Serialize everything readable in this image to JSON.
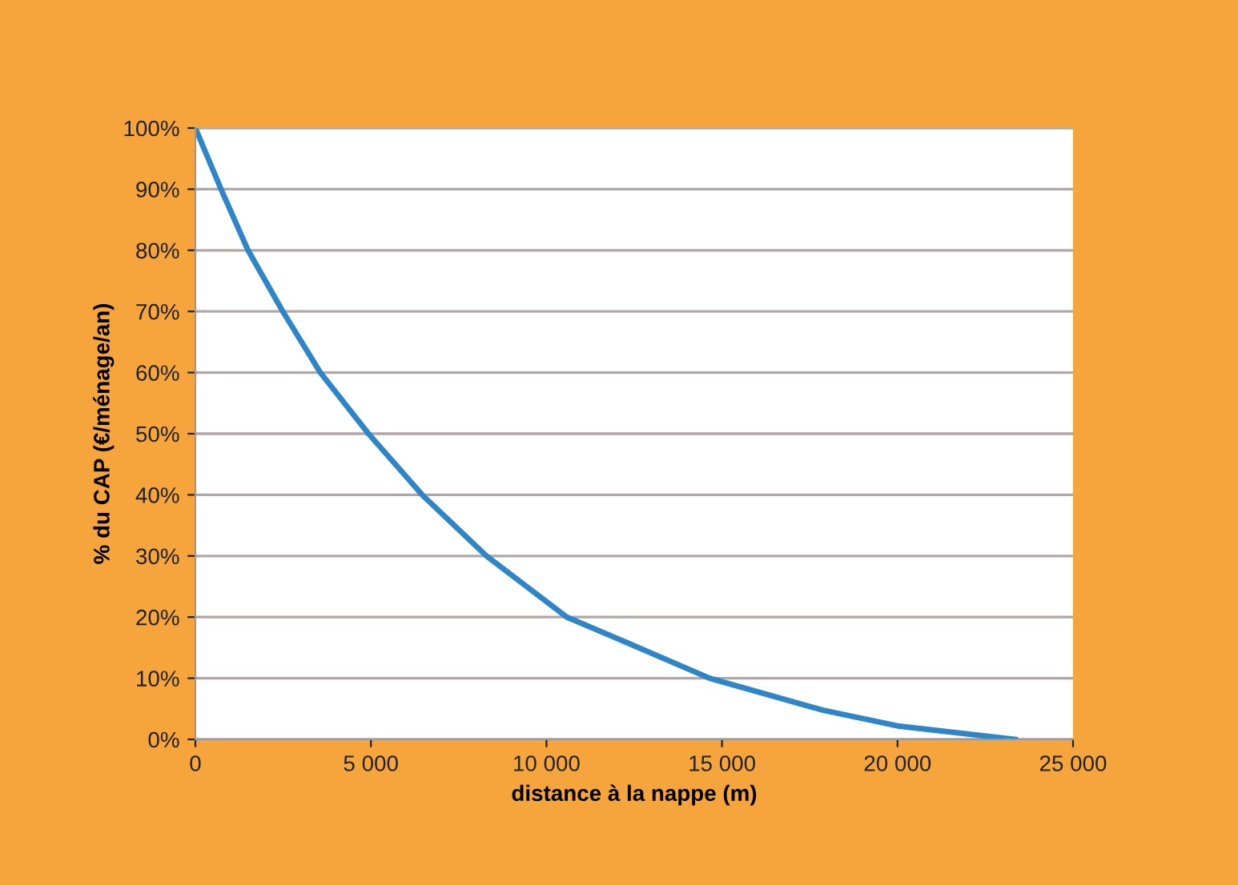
{
  "chart_data": {
    "type": "line",
    "xlabel": "distance à la nappe (m)",
    "ylabel": "% du CAP (€/ménage/an)",
    "x": [
      0,
      730,
      1500,
      2490,
      3560,
      4930,
      6460,
      8290,
      10580,
      12180,
      14650,
      17860,
      20000,
      23350
    ],
    "series": [
      {
        "color": "#2e86c8",
        "values": [
          100,
          90,
          80,
          70,
          60,
          50,
          40,
          30,
          20,
          16.1,
          10,
          4.8,
          2.2,
          0
        ]
      }
    ],
    "xlim": [
      0,
      25000
    ],
    "xticks": [
      {
        "value": 0,
        "label": "0"
      },
      {
        "value": 5000,
        "label": "5 000"
      },
      {
        "value": 10000,
        "label": "10 000"
      },
      {
        "value": 15000,
        "label": "15 000"
      },
      {
        "value": 20000,
        "label": "20 000"
      },
      {
        "value": 25000,
        "label": "25 000"
      }
    ],
    "ylim": [
      0,
      100
    ],
    "yticks": [
      {
        "value": 0,
        "label": "0%"
      },
      {
        "value": 10,
        "label": "10%"
      },
      {
        "value": 20,
        "label": "20%"
      },
      {
        "value": 30,
        "label": "30%"
      },
      {
        "value": 40,
        "label": "40%"
      },
      {
        "value": 50,
        "label": "50%"
      },
      {
        "value": 60,
        "label": "60%"
      },
      {
        "value": 70,
        "label": "70%"
      },
      {
        "value": 80,
        "label": "80%"
      },
      {
        "value": 90,
        "label": "90%"
      },
      {
        "value": 100,
        "label": "100%"
      }
    ],
    "grid": "y",
    "legend": false,
    "marker": "none",
    "line_style": "solid"
  }
}
